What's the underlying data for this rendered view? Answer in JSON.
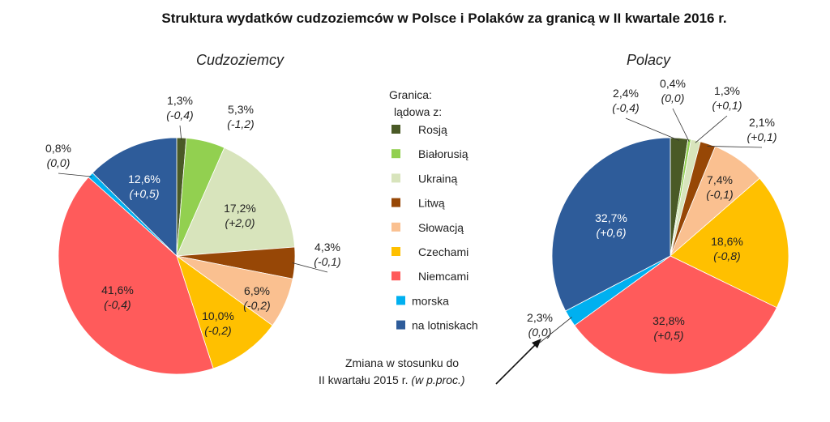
{
  "title": "Struktura wydatków cudzoziemców w Polsce i Polaków za granicą w II kwartale 2016 r.",
  "legend": {
    "header_line1": "Granica:",
    "header_line2": "lądowa z:",
    "items": [
      {
        "label": "Rosją",
        "color": "#4a5a26"
      },
      {
        "label": "Białorusią",
        "color": "#92d050"
      },
      {
        "label": "Ukrainą",
        "color": "#d8e4bc"
      },
      {
        "label": "Litwą",
        "color": "#974706"
      },
      {
        "label": "Słowacją",
        "color": "#fac090"
      },
      {
        "label": "Czechami",
        "color": "#ffc000"
      },
      {
        "label": "Niemcami",
        "color": "#ff5b5b"
      },
      {
        "label": "morska",
        "color": "#00b0f0"
      },
      {
        "label": "na lotniskach",
        "color": "#2e5c9a"
      }
    ]
  },
  "annotation": {
    "line1": "Zmiana w stosunku do",
    "line2_prefix": "II kwartału 2015 r. ",
    "line2_italic": "(w p.proc.)"
  },
  "chart_data": [
    {
      "type": "pie",
      "title": "Cudzoziemcy",
      "categories": [
        "Rosją",
        "Białorusią",
        "Ukrainą",
        "Litwą",
        "Słowacją",
        "Czechami",
        "Niemcami",
        "morska",
        "na lotniskach"
      ],
      "values": [
        1.3,
        5.3,
        17.2,
        4.3,
        6.9,
        10.0,
        41.6,
        0.8,
        12.6
      ],
      "value_labels": [
        "1,3%",
        "5,3%",
        "17,2%",
        "4,3%",
        "6,9%",
        "10,0%",
        "41,6%",
        "0,8%",
        "12,6%"
      ],
      "change_labels": [
        "(-0,4)",
        "(-1,2)",
        "(+2,0)",
        "(-0,1)",
        "(-0,2)",
        "(-0,2)",
        "(-0,4)",
        "(0,0)",
        "(+0,5)"
      ]
    },
    {
      "type": "pie",
      "title": "Polacy",
      "categories": [
        "Rosją",
        "Białorusią",
        "Ukrainą",
        "Litwą",
        "Słowacją",
        "Czechami",
        "Niemcami",
        "morska",
        "na lotniskach"
      ],
      "values": [
        2.4,
        0.4,
        1.3,
        2.1,
        7.4,
        18.6,
        32.8,
        2.3,
        32.7
      ],
      "value_labels": [
        "2,4%",
        "0,4%",
        "1,3%",
        "2,1%",
        "7,4%",
        "18,6%",
        "32,8%",
        "2,3%",
        "32,7%"
      ],
      "change_labels": [
        "(-0,4)",
        "(0,0)",
        "(+0,1)",
        "(+0,1)",
        "(-0,1)",
        "(-0,8)",
        "(+0,5)",
        "(0,0)",
        "(+0,6)"
      ]
    }
  ]
}
